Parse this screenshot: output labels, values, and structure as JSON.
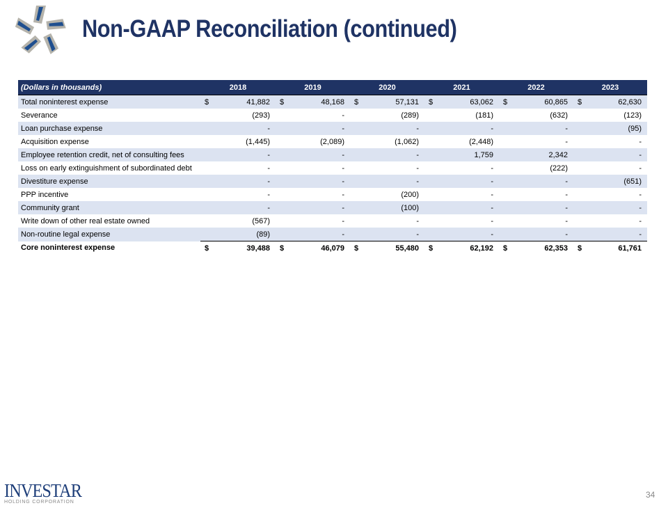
{
  "title": "Non-GAAP Reconciliation (continued)",
  "brand": {
    "name": "INVESTAR",
    "subtitle": "HOLDING CORPORATION",
    "colors": {
      "navy": "#1f3364",
      "row_alt": "#dce3f1"
    }
  },
  "page_number": "34",
  "table": {
    "header_label": "(Dollars in thousands)",
    "years": [
      "2018",
      "2019",
      "2020",
      "2021",
      "2022",
      "2023"
    ],
    "rows": [
      {
        "label": "Total noninterest expense",
        "dollar": true,
        "values": [
          "41,882",
          "48,168",
          "57,131",
          "63,062",
          "60,865",
          "62,630"
        ]
      },
      {
        "label": "Severance",
        "values": [
          "(293)",
          "-",
          "(289)",
          "(181)",
          "(632)",
          "(123)"
        ]
      },
      {
        "label": "Loan purchase expense",
        "values": [
          "-",
          "-",
          "-",
          "-",
          "-",
          "(95)"
        ]
      },
      {
        "label": "Acquisition expense",
        "values": [
          "(1,445)",
          "(2,089)",
          "(1,062)",
          "(2,448)",
          "-",
          "-"
        ]
      },
      {
        "label": "Employee retention credit, net of consulting fees",
        "values": [
          "-",
          "-",
          "-",
          "1,759",
          "2,342",
          "-"
        ]
      },
      {
        "label": "Loss on early extinguishment of subordinated debt",
        "values": [
          "-",
          "-",
          "-",
          "-",
          "(222)",
          "-"
        ]
      },
      {
        "label": "Divestiture expense",
        "values": [
          "-",
          "-",
          "-",
          "-",
          "-",
          "(651)"
        ]
      },
      {
        "label": "PPP incentive",
        "values": [
          "-",
          "-",
          "(200)",
          "-",
          "-",
          "-"
        ]
      },
      {
        "label": "Community grant",
        "values": [
          "-",
          "-",
          "(100)",
          "-",
          "-",
          "-"
        ]
      },
      {
        "label": "Write down of other real estate owned",
        "values": [
          "(567)",
          "-",
          "-",
          "-",
          "-",
          "-"
        ]
      },
      {
        "label": "Non-routine legal expense",
        "values": [
          "(89)",
          "-",
          "-",
          "-",
          "-",
          "-"
        ]
      },
      {
        "label": "Core noninterest expense",
        "dollar": true,
        "total": true,
        "values": [
          "39,488",
          "46,079",
          "55,480",
          "62,192",
          "62,353",
          "61,761"
        ]
      }
    ],
    "currency_symbol": "$"
  }
}
